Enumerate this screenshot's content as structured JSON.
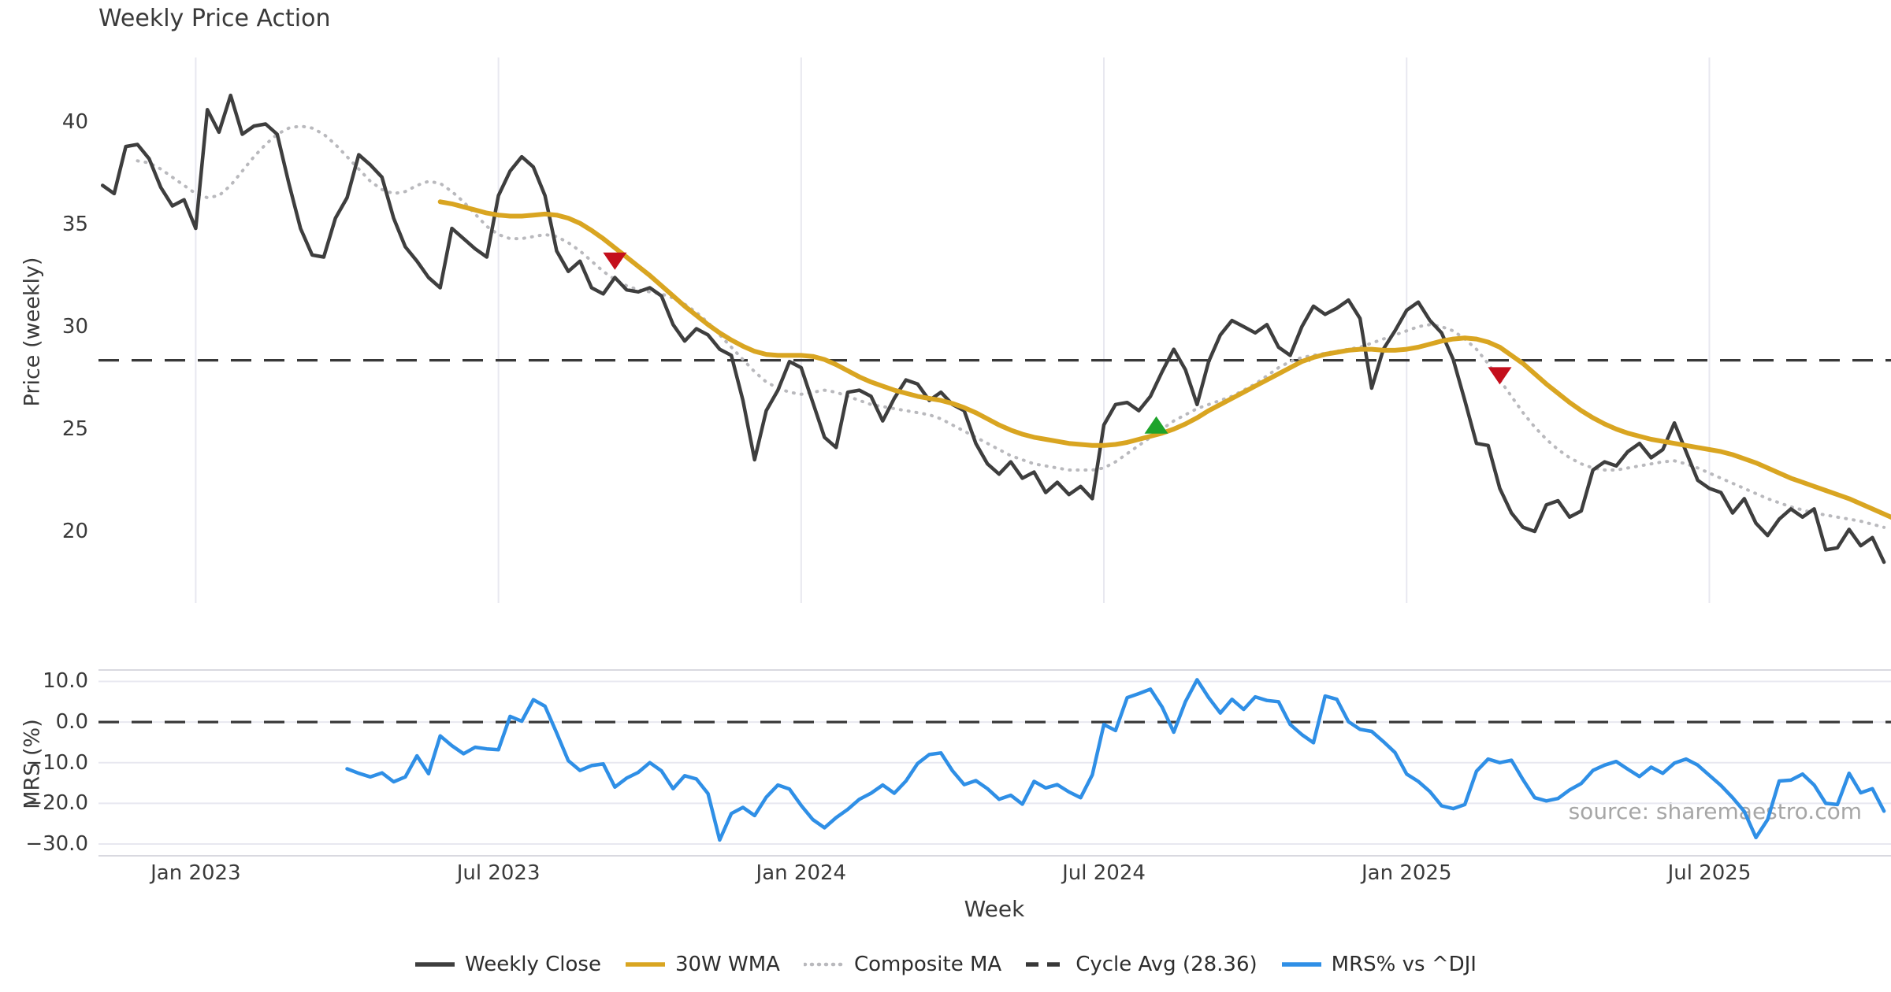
{
  "title": "Weekly Price Action",
  "source_note": "source: sharemaestro.com",
  "colors": {
    "weekly_close": "#3e3e3e",
    "wma": "#d9a521",
    "composite": "#b9b9bd",
    "cycle_avg": "#383838",
    "mrs": "#2f8fe6",
    "sell_marker": "#c40f1c",
    "buy_marker": "#1ea32b",
    "gridline": "#e8e8f0",
    "spine": "#d9d9e0",
    "text": "#3a3a3a",
    "source_text": "#a6a6a6"
  },
  "chart_data": {
    "type": "line",
    "title": "Weekly Price Action",
    "xlabel": "Week",
    "x_unit": "week index (week 0 = early Nov 2022, one point per week)",
    "xlim": [
      -0.35,
      153.6
    ],
    "x_ticks": [
      {
        "week": 8,
        "label": "Jan 2023"
      },
      {
        "week": 34,
        "label": "Jul 2023"
      },
      {
        "week": 60,
        "label": "Jan 2024"
      },
      {
        "week": 86,
        "label": "Jul 2024"
      },
      {
        "week": 112,
        "label": "Jan 2025"
      },
      {
        "week": 138,
        "label": "Jul 2025"
      }
    ],
    "panels": [
      {
        "id": "price",
        "ylabel": "Price (weekly)",
        "ylim": [
          16.5,
          43.15
        ],
        "grid": "vertical-only",
        "yticks": [
          {
            "value": 40,
            "label": "40"
          },
          {
            "value": 35,
            "label": "35"
          },
          {
            "value": 30,
            "label": "30"
          },
          {
            "value": 25,
            "label": "25"
          },
          {
            "value": 20,
            "label": "20"
          }
        ],
        "reference_line": {
          "label": "Cycle Avg (28.36)",
          "value": 28.36,
          "style": "dashed"
        },
        "series": [
          {
            "name": "Composite MA",
            "style": "dotted",
            "color_key": "composite",
            "width": 4,
            "start_week": 3,
            "values": [
              38.1,
              38.0,
              37.7,
              37.3,
              36.9,
              36.5,
              36.3,
              36.4,
              36.9,
              37.6,
              38.3,
              38.9,
              39.4,
              39.7,
              39.8,
              39.7,
              39.4,
              38.9,
              38.3,
              37.7,
              37.1,
              36.7,
              36.5,
              36.6,
              36.9,
              37.1,
              37.0,
              36.6,
              36.1,
              35.5,
              34.9,
              34.5,
              34.3,
              34.3,
              34.4,
              34.5,
              34.4,
              34.1,
              33.7,
              33.2,
              32.7,
              32.3,
              32.0,
              31.8,
              31.7,
              31.6,
              31.4,
              31.1,
              30.7,
              30.2,
              29.6,
              29.0,
              28.4,
              27.8,
              27.3,
              27.0,
              26.8,
              26.7,
              26.8,
              26.9,
              26.8,
              26.6,
              26.4,
              26.2,
              26.1,
              26.0,
              25.9,
              25.8,
              25.7,
              25.5,
              25.2,
              24.9,
              24.6,
              24.3,
              24.0,
              23.7,
              23.5,
              23.3,
              23.2,
              23.1,
              23.0,
              23.0,
              23.0,
              23.1,
              23.4,
              23.8,
              24.2,
              24.6,
              25.0,
              25.4,
              25.7,
              26.0,
              26.2,
              26.4,
              26.6,
              26.9,
              27.2,
              27.6,
              28.0,
              28.3,
              28.5,
              28.6,
              28.7,
              28.8,
              28.9,
              29.0,
              29.2,
              29.4,
              29.6,
              29.8,
              30.0,
              30.1,
              30.0,
              29.8,
              29.4,
              28.9,
              28.2,
              27.4,
              26.6,
              25.8,
              25.1,
              24.5,
              24.0,
              23.6,
              23.3,
              23.1,
              23.0,
              23.0,
              23.1,
              23.2,
              23.3,
              23.4,
              23.45,
              23.3,
              23.1,
              22.85,
              22.6,
              22.35,
              22.1,
              21.85,
              21.6,
              21.4,
              21.2,
              21.05,
              20.9,
              20.8,
              20.7,
              20.6,
              20.5,
              20.35,
              20.2
            ]
          },
          {
            "name": "Weekly Close",
            "style": "solid",
            "color_key": "weekly_close",
            "width": 4.5,
            "start_week": 0,
            "values": [
              36.9,
              36.5,
              38.8,
              38.9,
              38.2,
              36.8,
              35.9,
              36.2,
              34.8,
              40.6,
              39.5,
              41.3,
              39.4,
              39.8,
              39.9,
              39.4,
              37.0,
              34.8,
              33.5,
              33.4,
              35.3,
              36.3,
              38.4,
              37.9,
              37.3,
              35.3,
              33.9,
              33.2,
              32.4,
              31.9,
              34.8,
              34.3,
              33.8,
              33.4,
              36.4,
              37.6,
              38.3,
              37.8,
              36.4,
              33.7,
              32.7,
              33.2,
              31.9,
              31.6,
              32.4,
              31.8,
              31.7,
              31.9,
              31.5,
              30.1,
              29.3,
              29.9,
              29.6,
              28.9,
              28.6,
              26.4,
              23.5,
              25.9,
              26.9,
              28.3,
              28.0,
              26.3,
              24.6,
              24.1,
              26.8,
              26.9,
              26.6,
              25.4,
              26.5,
              27.4,
              27.2,
              26.4,
              26.8,
              26.2,
              25.9,
              24.3,
              23.3,
              22.8,
              23.4,
              22.6,
              22.9,
              21.9,
              22.4,
              21.8,
              22.2,
              21.6,
              25.2,
              26.2,
              26.3,
              25.9,
              26.6,
              27.8,
              28.9,
              27.9,
              26.2,
              28.3,
              29.6,
              30.3,
              30.0,
              29.7,
              30.1,
              29.0,
              28.6,
              30.0,
              31.0,
              30.6,
              30.9,
              31.3,
              30.4,
              27.0,
              28.9,
              29.8,
              30.8,
              31.2,
              30.3,
              29.7,
              28.4,
              26.4,
              24.3,
              24.2,
              22.1,
              20.9,
              20.2,
              20.0,
              21.3,
              21.5,
              20.7,
              21.0,
              23.0,
              23.4,
              23.2,
              23.9,
              24.3,
              23.6,
              24.0,
              25.3,
              23.9,
              22.5,
              22.1,
              21.9,
              20.9,
              21.6,
              20.4,
              19.8,
              20.6,
              21.1,
              20.7,
              21.1,
              19.1,
              19.2,
              20.1,
              19.3,
              19.7,
              18.5
            ]
          },
          {
            "name": "30W WMA",
            "style": "solid",
            "color_key": "wma",
            "width": 6,
            "start_week": 29,
            "values": [
              36.1,
              36.0,
              35.85,
              35.7,
              35.55,
              35.45,
              35.4,
              35.4,
              35.45,
              35.5,
              35.45,
              35.3,
              35.05,
              34.7,
              34.3,
              33.85,
              33.4,
              32.95,
              32.5,
              32.0,
              31.5,
              31.0,
              30.55,
              30.1,
              29.7,
              29.35,
              29.05,
              28.8,
              28.65,
              28.6,
              28.6,
              28.6,
              28.55,
              28.4,
              28.15,
              27.85,
              27.55,
              27.3,
              27.1,
              26.9,
              26.75,
              26.6,
              26.5,
              26.4,
              26.25,
              26.05,
              25.8,
              25.5,
              25.2,
              24.95,
              24.75,
              24.6,
              24.5,
              24.4,
              24.3,
              24.25,
              24.2,
              24.2,
              24.25,
              24.35,
              24.5,
              24.65,
              24.8,
              25.0,
              25.25,
              25.55,
              25.9,
              26.2,
              26.5,
              26.8,
              27.1,
              27.4,
              27.7,
              28.0,
              28.3,
              28.5,
              28.65,
              28.75,
              28.85,
              28.9,
              28.9,
              28.85,
              28.85,
              28.9,
              29.0,
              29.15,
              29.3,
              29.4,
              29.45,
              29.4,
              29.25,
              29.0,
              28.6,
              28.2,
              27.7,
              27.2,
              26.75,
              26.3,
              25.9,
              25.55,
              25.25,
              25.0,
              24.8,
              24.65,
              24.5,
              24.4,
              24.3,
              24.2,
              24.1,
              24.0,
              23.9,
              23.75,
              23.55,
              23.35,
              23.1,
              22.85,
              22.6,
              22.4,
              22.2,
              22.0,
              21.8,
              21.6,
              21.35,
              21.1,
              20.85,
              20.6
            ]
          }
        ],
        "markers": [
          {
            "signal": "sell",
            "shape": "triangle-down",
            "color_key": "sell_marker",
            "week": 44,
            "value": 33.2
          },
          {
            "signal": "buy",
            "shape": "triangle-up",
            "color_key": "buy_marker",
            "week": 90.5,
            "value": 25.2
          },
          {
            "signal": "sell",
            "shape": "triangle-down",
            "color_key": "sell_marker",
            "week": 120,
            "value": 27.6
          }
        ]
      },
      {
        "id": "mrs",
        "ylabel": "MRS (%)",
        "ylim": [
          -32.9,
          12.8
        ],
        "grid": "horizontal-only",
        "yticks": [
          {
            "value": 10,
            "label": "10.0"
          },
          {
            "value": 0,
            "label": "0.0"
          },
          {
            "value": -10,
            "label": "−10.0"
          },
          {
            "value": -20,
            "label": "−20.0"
          },
          {
            "value": -30,
            "label": "−30.0"
          }
        ],
        "reference_line": {
          "label": "zero line",
          "value": 0,
          "style": "dashed"
        },
        "series": [
          {
            "name": "MRS% vs ^DJI",
            "style": "solid",
            "color_key": "mrs",
            "width": 4.5,
            "start_week": 21,
            "values": [
              -11.5,
              -12.6,
              -13.5,
              -12.5,
              -14.7,
              -13.5,
              -8.3,
              -12.7,
              -3.4,
              -5.8,
              -7.8,
              -6.2,
              -6.6,
              -6.8,
              1.4,
              0.2,
              5.5,
              3.9,
              -2.7,
              -9.5,
              -11.9,
              -10.7,
              -10.3,
              -16.0,
              -13.8,
              -12.4,
              -10.0,
              -12.0,
              -16.4,
              -13.2,
              -14.0,
              -17.6,
              -29.0,
              -22.5,
              -21.0,
              -23.0,
              -18.5,
              -15.5,
              -16.5,
              -20.5,
              -24.0,
              -26.0,
              -23.5,
              -21.5,
              -19.0,
              -17.5,
              -15.5,
              -17.5,
              -14.5,
              -10.2,
              -8.0,
              -7.6,
              -12.0,
              -15.4,
              -14.4,
              -16.4,
              -19.0,
              -18.0,
              -20.2,
              -14.6,
              -16.2,
              -15.4,
              -17.2,
              -18.6,
              -13.0,
              -0.6,
              -2.1,
              6.0,
              7.0,
              8.1,
              3.7,
              -2.5,
              5.0,
              10.4,
              6.0,
              2.2,
              5.6,
              3.1,
              6.2,
              5.3,
              5.0,
              -0.6,
              -3.1,
              -5.1,
              6.4,
              5.6,
              0.1,
              -1.8,
              -2.3,
              -4.8,
              -7.5,
              -12.8,
              -14.6,
              -17.1,
              -20.6,
              -21.3,
              -20.3,
              -12.1,
              -9.1,
              -10.0,
              -9.4,
              -14.2,
              -18.6,
              -19.4,
              -18.8,
              -16.7,
              -15.1,
              -11.9,
              -10.6,
              -9.7,
              -11.6,
              -13.4,
              -11.1,
              -12.6,
              -10.1,
              -9.1,
              -10.6,
              -13.1,
              -15.6,
              -18.6,
              -22.0,
              -28.4,
              -24.0,
              -14.5,
              -14.3,
              -12.8,
              -15.5,
              -20.0,
              -20.3,
              -12.6,
              -17.4,
              -16.4,
              -21.9
            ]
          }
        ]
      }
    ],
    "legend": [
      {
        "label": "Weekly Close",
        "color_key": "weekly_close",
        "style": "solid"
      },
      {
        "label": "30W WMA",
        "color_key": "wma",
        "style": "solid"
      },
      {
        "label": "Composite MA",
        "color_key": "composite",
        "style": "dotted"
      },
      {
        "label": "Cycle Avg (28.36)",
        "color_key": "cycle_avg",
        "style": "dashed"
      },
      {
        "label": "MRS% vs ^DJI",
        "color_key": "mrs",
        "style": "solid"
      }
    ],
    "legend_position": "bottom-center",
    "grid_on": true
  }
}
